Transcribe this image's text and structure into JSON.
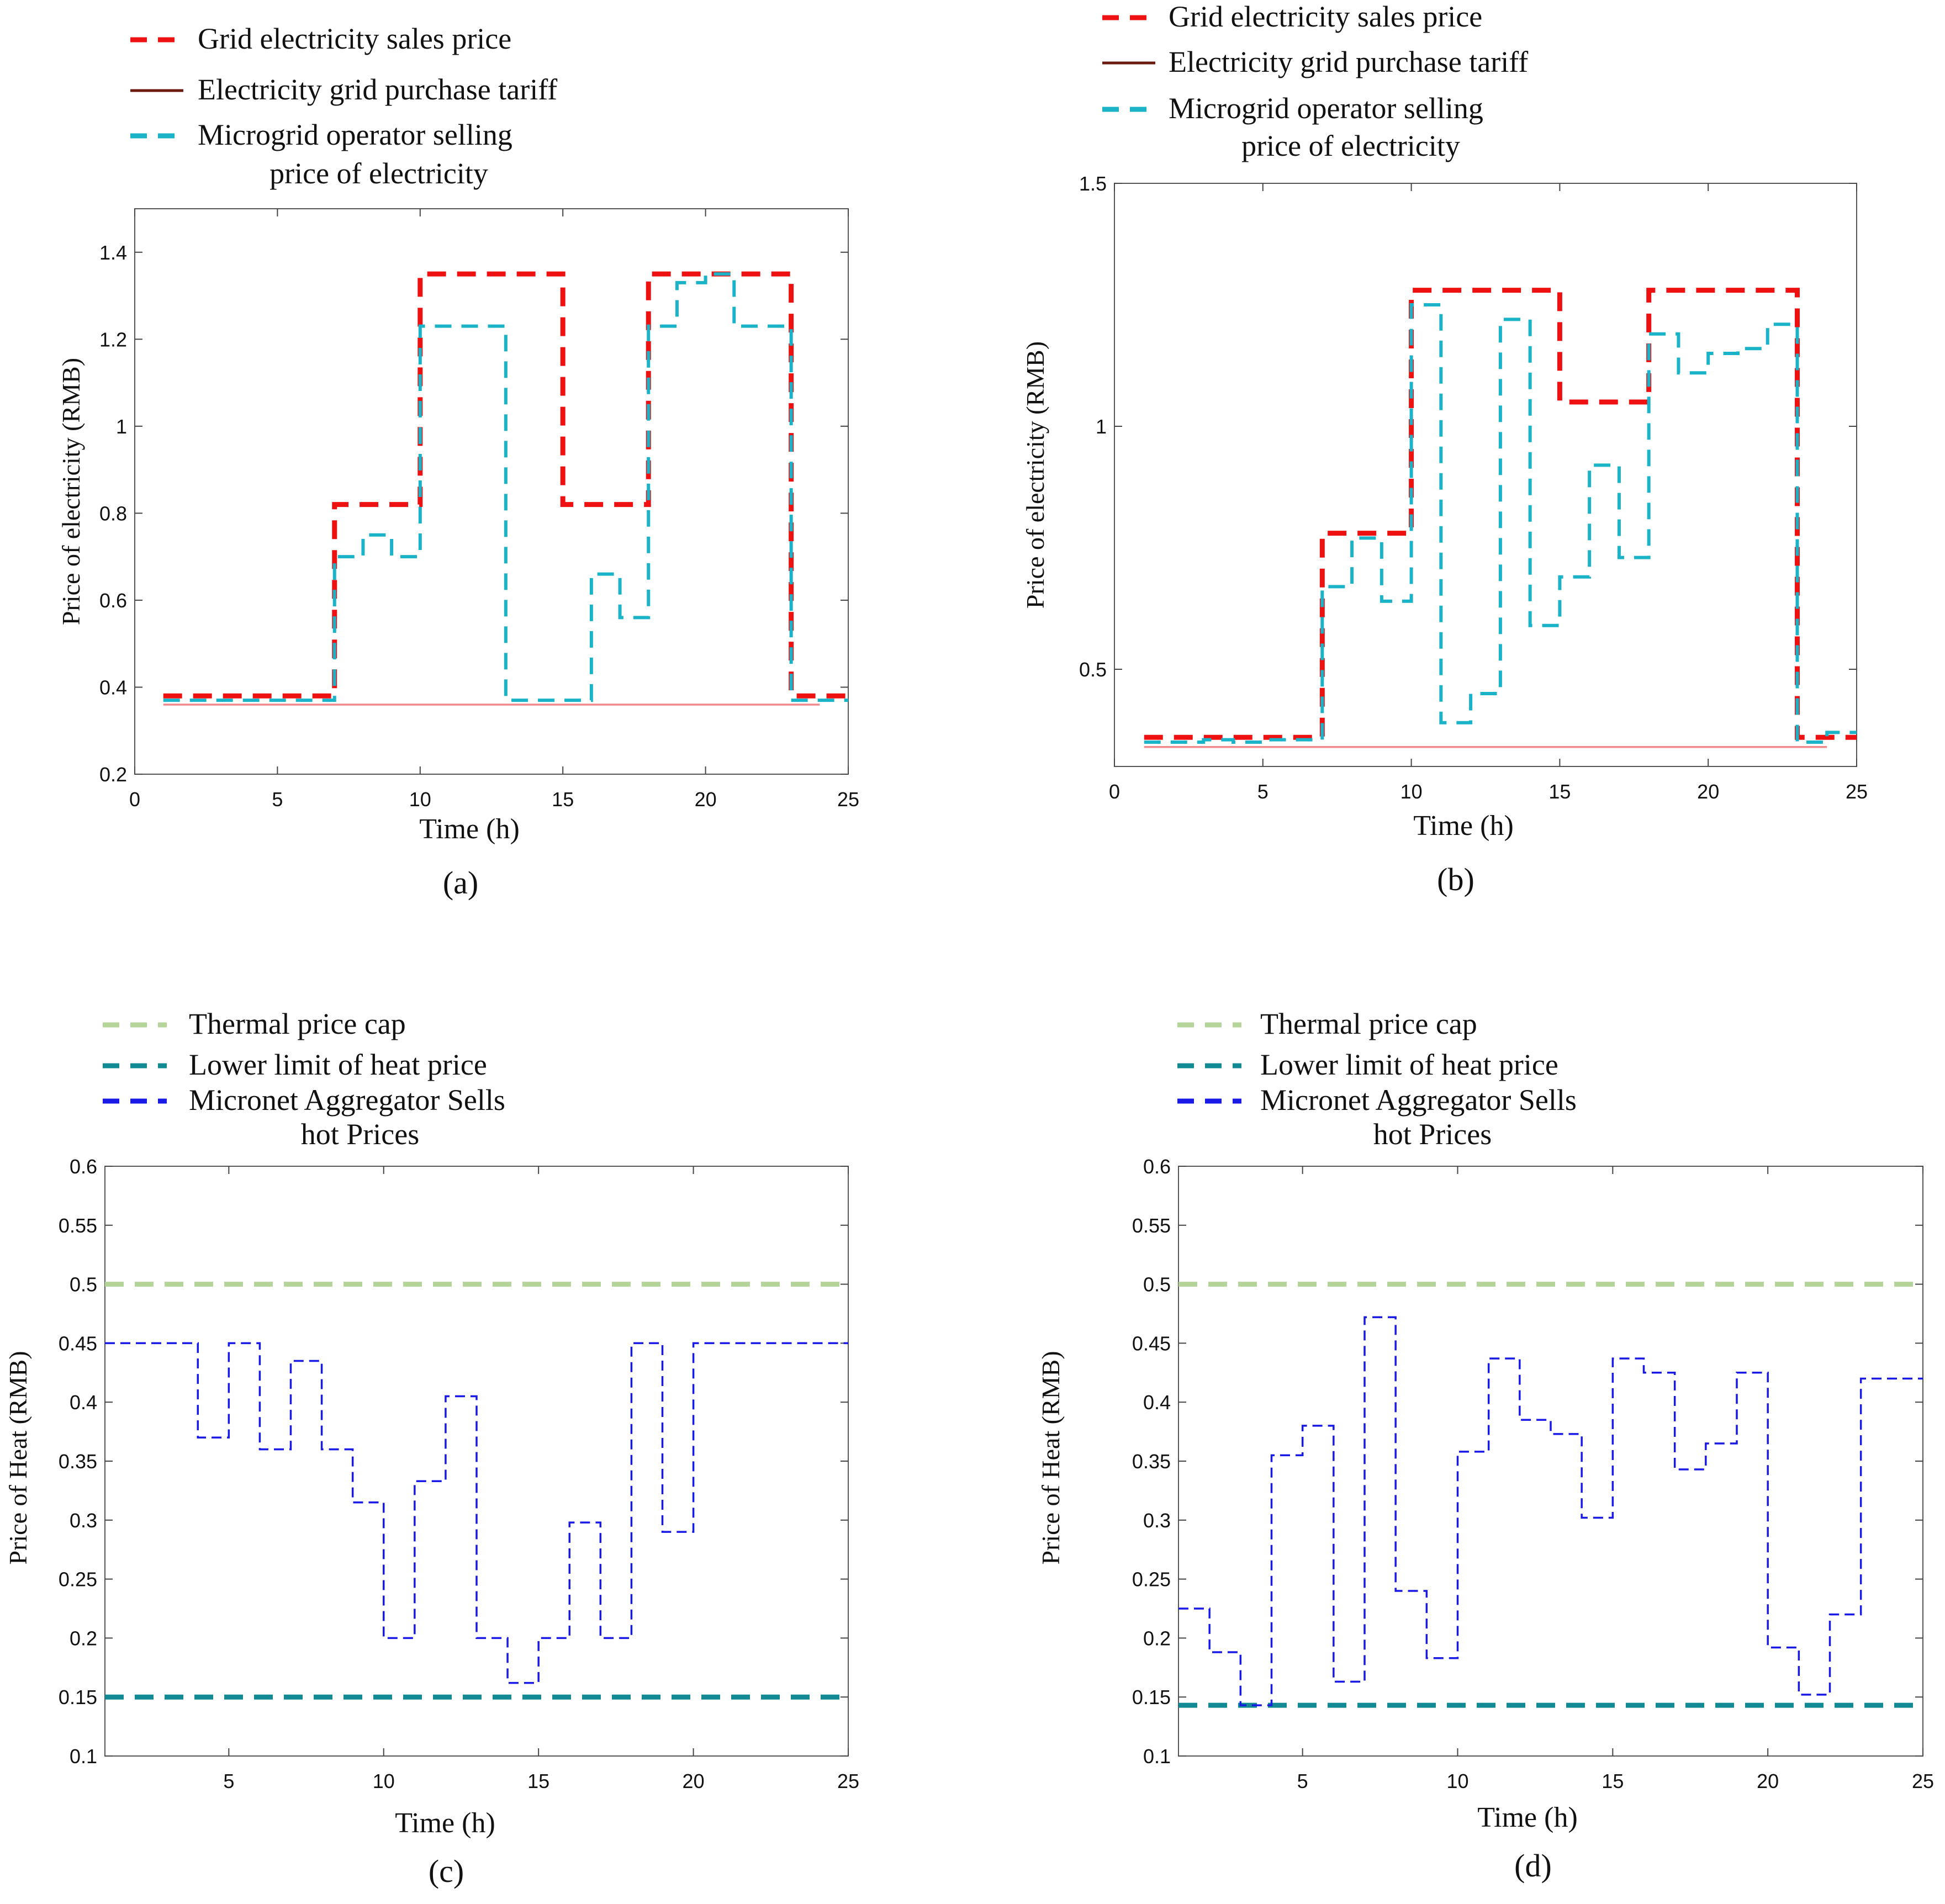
{
  "chart_data": [
    {
      "panel": "(a)",
      "type": "line",
      "xlabel": "Time (h)",
      "ylabel": "Price of electricity  (RMB)",
      "xlim": [
        0,
        25
      ],
      "ylim": [
        0.2,
        1.5
      ],
      "xticks": [
        0,
        5,
        10,
        15,
        20,
        25
      ],
      "yticks": [
        0.2,
        0.4,
        0.6,
        0.8,
        1,
        1.2,
        1.4
      ],
      "xtick_labels": [
        "0",
        "5",
        "10",
        "15",
        "20",
        "25"
      ],
      "ytick_labels": [
        "0.2",
        "0.4",
        "0.6",
        "0.8",
        "1",
        "1.2",
        "1.4"
      ],
      "legend": [
        "Grid electricity sales price",
        "Electricity grid purchase tariff",
        "Microgrid operator selling",
        "price of electricity"
      ],
      "series": [
        {
          "name": "Grid electricity sales price",
          "color": "#ee1111",
          "style": "dash-thick",
          "step": true,
          "x": [
            1,
            2,
            3,
            4,
            5,
            6,
            7,
            8,
            9,
            10,
            11,
            12,
            13,
            14,
            15,
            16,
            17,
            18,
            19,
            20,
            21,
            22,
            23,
            24
          ],
          "y": [
            0.38,
            0.38,
            0.38,
            0.38,
            0.38,
            0.38,
            0.82,
            0.82,
            0.82,
            1.35,
            1.35,
            1.35,
            1.35,
            1.35,
            0.82,
            0.82,
            0.82,
            1.35,
            1.35,
            1.35,
            1.35,
            1.35,
            0.38,
            0.38
          ]
        },
        {
          "name": "Electricity grid purchase tariff",
          "color": "#f08a8a",
          "legend_color": "#6b1a10",
          "style": "solid",
          "step": true,
          "x": [
            1,
            24
          ],
          "y": [
            0.36,
            0.36
          ]
        },
        {
          "name": "Microgrid operator selling price of electricity",
          "color": "#1ab3c8",
          "style": "dash",
          "step": true,
          "x": [
            1,
            2,
            3,
            4,
            5,
            6,
            7,
            8,
            9,
            10,
            11,
            12,
            13,
            14,
            15,
            16,
            17,
            18,
            19,
            20,
            21,
            22,
            23,
            24
          ],
          "y": [
            0.37,
            0.37,
            0.37,
            0.37,
            0.37,
            0.37,
            0.7,
            0.75,
            0.7,
            1.23,
            1.23,
            1.23,
            0.37,
            0.37,
            0.37,
            0.66,
            0.56,
            1.23,
            1.33,
            1.35,
            1.23,
            1.23,
            0.37,
            0.37
          ]
        }
      ]
    },
    {
      "panel": "(b)",
      "type": "line",
      "xlabel": "Time (h)",
      "ylabel": "Price of electricity  (RMB)",
      "xlim": [
        0,
        25
      ],
      "ylim": [
        0.3,
        1.5
      ],
      "xticks": [
        0,
        5,
        10,
        15,
        20,
        25
      ],
      "yticks": [
        0.5,
        1,
        1.5
      ],
      "xtick_labels": [
        "0",
        "5",
        "10",
        "15",
        "20",
        "25"
      ],
      "ytick_labels": [
        "0.5",
        "1",
        "1.5"
      ],
      "legend": [
        "Grid electricity sales price",
        "Electricity grid purchase tariff",
        "Microgrid operator selling",
        "price of electricity"
      ],
      "series": [
        {
          "name": "Grid electricity sales price",
          "color": "#ee1111",
          "style": "dash-thick",
          "step": true,
          "x": [
            1,
            2,
            3,
            4,
            5,
            6,
            7,
            8,
            9,
            10,
            11,
            12,
            13,
            14,
            15,
            16,
            17,
            18,
            19,
            20,
            21,
            22,
            23,
            24
          ],
          "y": [
            0.36,
            0.36,
            0.36,
            0.36,
            0.36,
            0.36,
            0.78,
            0.78,
            0.78,
            1.28,
            1.28,
            1.28,
            1.28,
            1.28,
            1.05,
            1.05,
            1.05,
            1.28,
            1.28,
            1.28,
            1.28,
            1.28,
            0.36,
            0.36
          ]
        },
        {
          "name": "Electricity grid purchase tariff",
          "color": "#f08a8a",
          "legend_color": "#6b1a10",
          "style": "solid",
          "step": true,
          "x": [
            1,
            24
          ],
          "y": [
            0.34,
            0.34
          ]
        },
        {
          "name": "Microgrid operator selling price of electricity",
          "color": "#1ab3c8",
          "style": "dash",
          "step": true,
          "x": [
            1,
            2,
            3,
            4,
            5,
            6,
            7,
            8,
            9,
            10,
            11,
            12,
            13,
            14,
            15,
            16,
            17,
            18,
            19,
            20,
            21,
            22,
            23,
            24
          ],
          "y": [
            0.35,
            0.35,
            0.355,
            0.35,
            0.355,
            0.355,
            0.67,
            0.77,
            0.64,
            1.25,
            0.39,
            0.45,
            1.22,
            0.59,
            0.69,
            0.92,
            0.73,
            1.19,
            1.11,
            1.15,
            1.16,
            1.21,
            0.35,
            0.37
          ]
        }
      ]
    },
    {
      "panel": "(c)",
      "type": "line",
      "xlabel": "Time (h)",
      "ylabel": "Price of Heat  (RMB)",
      "xlim": [
        1,
        25
      ],
      "ylim": [
        0.1,
        0.6
      ],
      "xticks": [
        5,
        10,
        15,
        20,
        25
      ],
      "yticks": [
        0.1,
        0.15,
        0.2,
        0.25,
        0.3,
        0.35,
        0.4,
        0.45,
        0.5,
        0.55,
        0.6
      ],
      "xtick_labels": [
        "5",
        "10",
        "15",
        "20",
        "25"
      ],
      "ytick_labels": [
        "0.1",
        "0.15",
        "0.2",
        "0.25",
        "0.3",
        "0.35",
        "0.4",
        "0.45",
        "0.5",
        "0.55",
        "0.6"
      ],
      "legend": [
        "Thermal price cap",
        "Lower limit of heat price",
        "Micronet Aggregator Sells",
        "hot Prices"
      ],
      "series": [
        {
          "name": "Thermal price cap",
          "color": "#b5d49a",
          "style": "dash-thick",
          "step": true,
          "x": [
            1,
            25
          ],
          "y": [
            0.5,
            0.5
          ]
        },
        {
          "name": "Lower limit of heat price",
          "color": "#128a93",
          "style": "dash-thick",
          "step": true,
          "x": [
            1,
            25
          ],
          "y": [
            0.15,
            0.15
          ]
        },
        {
          "name": "Micronet Aggregator Sells hot Prices",
          "color": "#1a1ae6",
          "style": "dash-thin",
          "step": true,
          "x": [
            1,
            2,
            3,
            4,
            5,
            6,
            7,
            8,
            9,
            10,
            11,
            12,
            13,
            14,
            15,
            16,
            17,
            18,
            19,
            20,
            21,
            22,
            23,
            24,
            25
          ],
          "y": [
            0.45,
            0.45,
            0.45,
            0.37,
            0.45,
            0.36,
            0.435,
            0.36,
            0.315,
            0.2,
            0.333,
            0.405,
            0.2,
            0.162,
            0.2,
            0.298,
            0.2,
            0.45,
            0.29,
            0.45,
            0.45,
            0.45,
            0.45,
            0.45,
            0.45
          ]
        }
      ]
    },
    {
      "panel": "(d)",
      "type": "line",
      "xlabel": "Time (h)",
      "ylabel": "Price of Heat  (RMB)",
      "xlim": [
        1,
        25
      ],
      "ylim": [
        0.1,
        0.6
      ],
      "xticks": [
        5,
        10,
        15,
        20,
        25
      ],
      "yticks": [
        0.1,
        0.15,
        0.2,
        0.25,
        0.3,
        0.35,
        0.4,
        0.45,
        0.5,
        0.55,
        0.6
      ],
      "xtick_labels": [
        "5",
        "10",
        "15",
        "20",
        "25"
      ],
      "ytick_labels": [
        "0.1",
        "0.15",
        "0.2",
        "0.25",
        "0.3",
        "0.35",
        "0.4",
        "0.45",
        "0.5",
        "0.55",
        "0.6"
      ],
      "legend": [
        "Thermal price cap",
        "Lower limit of heat price",
        "Micronet Aggregator Sells",
        "hot Prices"
      ],
      "series": [
        {
          "name": "Thermal price cap",
          "color": "#b5d49a",
          "style": "dash-thick",
          "step": true,
          "x": [
            1,
            25
          ],
          "y": [
            0.5,
            0.5
          ]
        },
        {
          "name": "Lower limit of heat price",
          "color": "#128a93",
          "style": "dash-thick",
          "step": true,
          "x": [
            1,
            25
          ],
          "y": [
            0.143,
            0.143
          ]
        },
        {
          "name": "Micronet Aggregator Sells hot Prices",
          "color": "#1a1ae6",
          "style": "dash-thin",
          "step": true,
          "x": [
            1,
            2,
            3,
            4,
            5,
            6,
            7,
            8,
            9,
            10,
            11,
            12,
            13,
            14,
            15,
            16,
            17,
            18,
            19,
            20,
            21,
            22,
            23,
            24,
            25
          ],
          "y": [
            0.225,
            0.188,
            0.143,
            0.355,
            0.38,
            0.163,
            0.472,
            0.24,
            0.183,
            0.358,
            0.437,
            0.385,
            0.373,
            0.302,
            0.437,
            0.425,
            0.343,
            0.365,
            0.425,
            0.192,
            0.152,
            0.22,
            0.42,
            0.42,
            0.42
          ]
        }
      ]
    }
  ]
}
